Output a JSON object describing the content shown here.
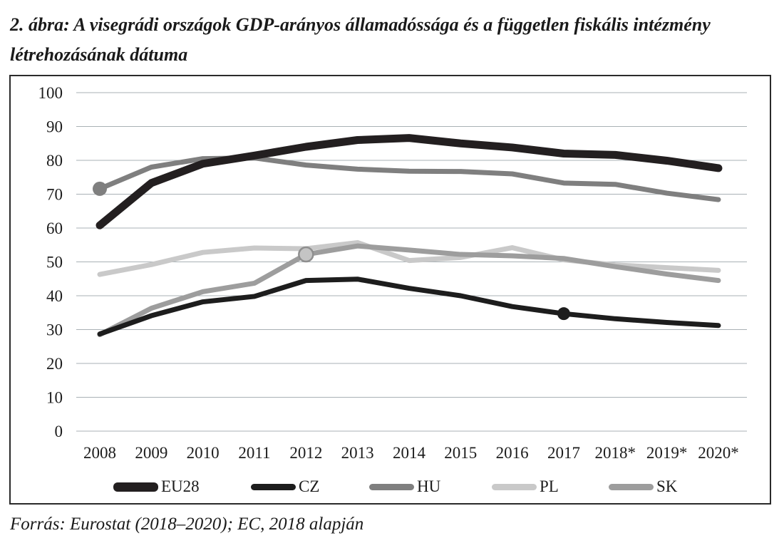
{
  "figure": {
    "title": "2. ábra: A visegrádi országok GDP-arányos államadóssága és a független fiskális intézmény létrehozásának dátuma",
    "source": "Forrás: Eurostat (2018–2020); EC, 2018 alapján"
  },
  "chart_data": {
    "type": "line",
    "title": "A visegrádi országok GDP-arányos államadóssága és a független fiskális intézmény létrehozásának dátuma",
    "x_categories": [
      "2008",
      "2009",
      "2010",
      "2011",
      "2012",
      "2013",
      "2014",
      "2015",
      "2016",
      "2017",
      "2018*",
      "2019*",
      "2020*"
    ],
    "ylim": [
      0,
      100
    ],
    "yticks": [
      0,
      10,
      20,
      30,
      40,
      50,
      60,
      70,
      80,
      90,
      100
    ],
    "grid": "horizontal",
    "grid_color": "#a9b1b5",
    "legend_position": "bottom",
    "series": [
      {
        "name": "EU28",
        "color": "#231f20",
        "width": 11,
        "z": 4,
        "values": [
          60.8,
          73.3,
          79.0,
          81.4,
          84.0,
          86.0,
          86.6,
          85.0,
          83.8,
          82.0,
          81.6,
          79.9,
          77.7
        ]
      },
      {
        "name": "CZ",
        "color": "#1d1d1d",
        "width": 7,
        "z": 5,
        "values": [
          28.7,
          34.1,
          38.2,
          39.8,
          44.5,
          44.9,
          42.2,
          40.0,
          36.8,
          34.7,
          33.2,
          32.1,
          31.2
        ]
      },
      {
        "name": "HU",
        "color": "#7f7f7f",
        "width": 7,
        "z": 2,
        "values": [
          71.6,
          78.0,
          80.5,
          80.7,
          78.6,
          77.4,
          76.8,
          76.7,
          76.0,
          73.3,
          72.9,
          70.3,
          68.4
        ]
      },
      {
        "name": "PL",
        "color": "#c9c9c9",
        "width": 7,
        "z": 1,
        "values": [
          46.3,
          49.2,
          52.8,
          54.1,
          53.9,
          55.7,
          50.4,
          51.3,
          54.2,
          50.6,
          49.1,
          48.3,
          47.5
        ]
      },
      {
        "name": "SK",
        "color": "#9d9d9d",
        "width": 7,
        "z": 3,
        "values": [
          28.5,
          36.3,
          41.2,
          43.7,
          52.2,
          54.7,
          53.5,
          52.2,
          51.8,
          51.0,
          48.6,
          46.4,
          44.5
        ]
      }
    ],
    "markers": [
      {
        "series": "HU",
        "x": "2008",
        "value": 71.6,
        "fill": "#7f7f7f",
        "stroke": "none",
        "radius": 10,
        "meaning": "független fiskális intézmény létrehozása"
      },
      {
        "series": "SK",
        "x": "2012",
        "value": 52.2,
        "fill": "#c4c4c4",
        "stroke": "#8f8f8f",
        "radius": 10,
        "meaning": "független fiskális intézmény létrehozása"
      },
      {
        "series": "CZ",
        "x": "2017",
        "value": 34.7,
        "fill": "#1d1d1d",
        "stroke": "none",
        "radius": 9,
        "meaning": "független fiskális intézmény létrehozása"
      }
    ],
    "legend_items": [
      "EU28",
      "CZ",
      "HU",
      "PL",
      "SK"
    ]
  }
}
